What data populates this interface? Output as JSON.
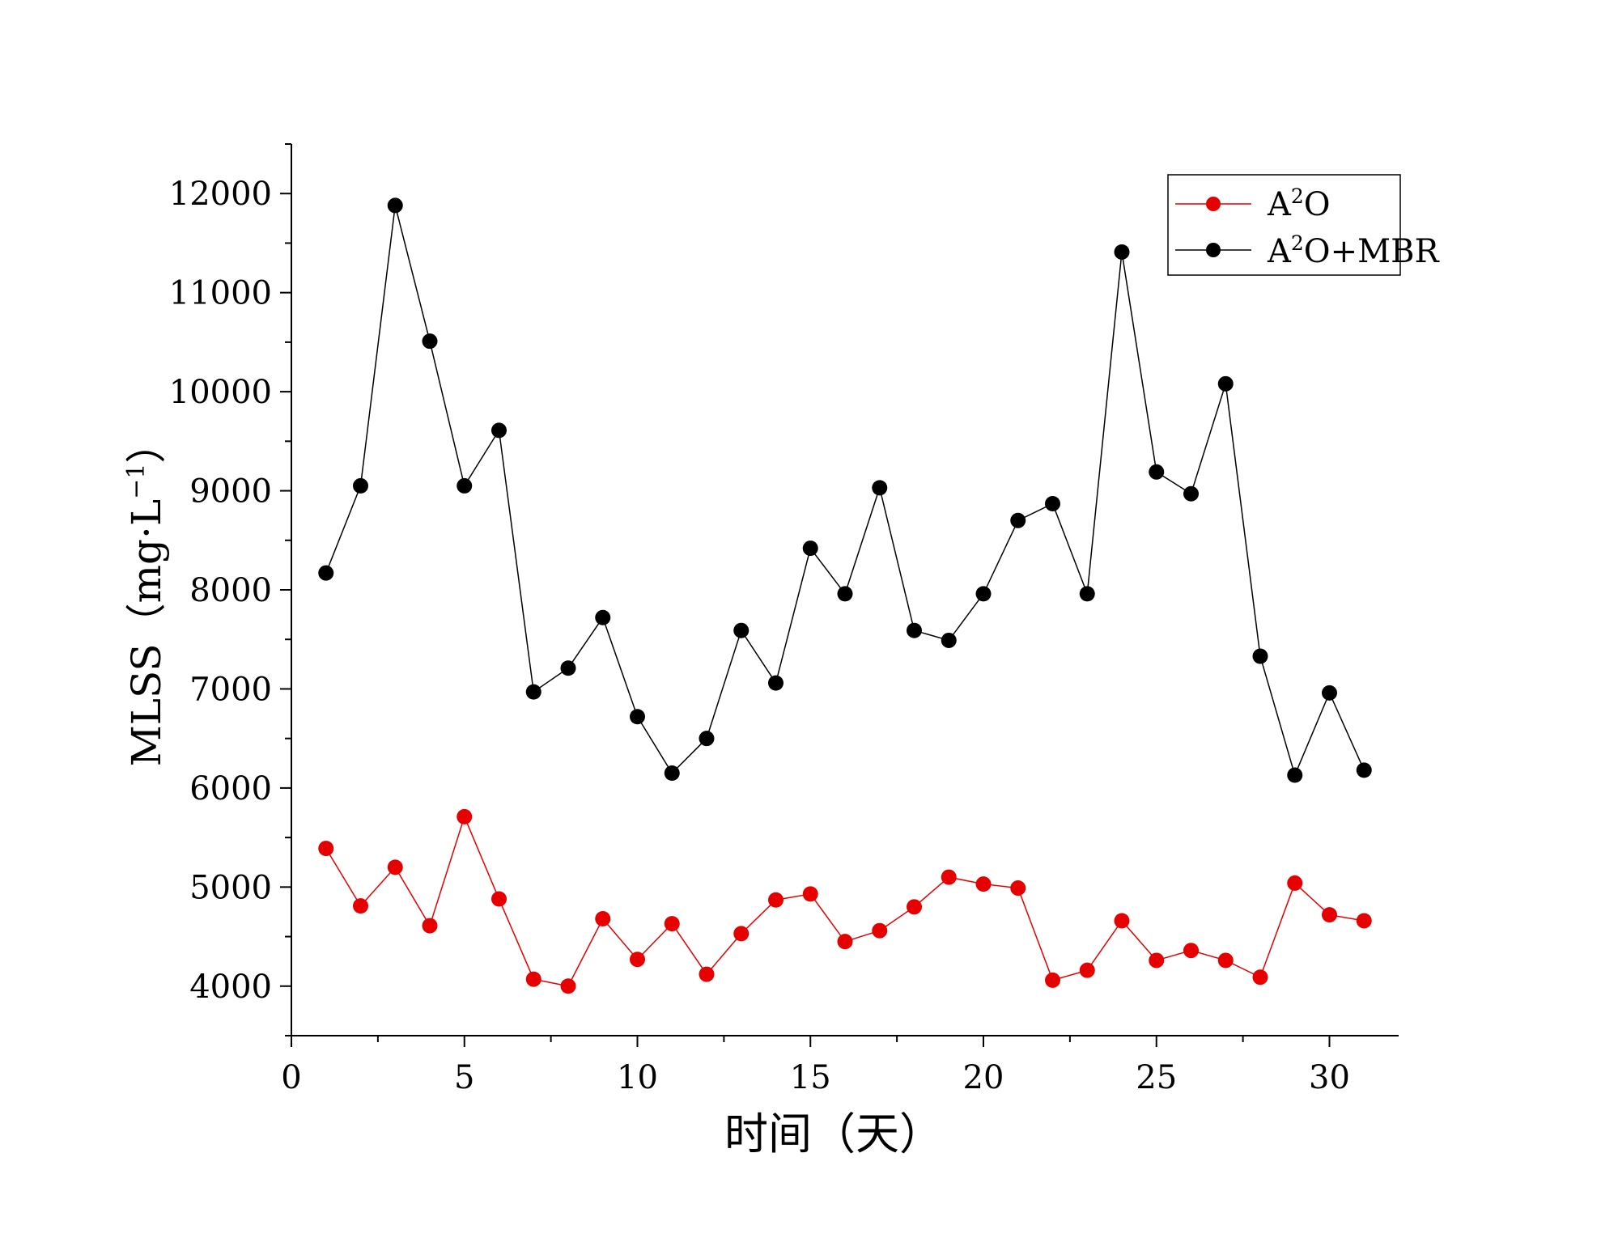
{
  "chart_data": {
    "type": "line",
    "xlabel": "时间（天）",
    "ylabel_main": "MLSS（mg·L",
    "ylabel_sup": "−1",
    "ylabel_tail": "）",
    "xlim": [
      0,
      32
    ],
    "ylim": [
      3500,
      12500
    ],
    "x_ticks": [
      0,
      5,
      10,
      15,
      20,
      25,
      30
    ],
    "y_ticks": [
      4000,
      5000,
      6000,
      7000,
      8000,
      9000,
      10000,
      11000,
      12000
    ],
    "x": [
      1,
      2,
      3,
      4,
      5,
      6,
      7,
      8,
      9,
      10,
      11,
      12,
      13,
      14,
      15,
      16,
      17,
      18,
      19,
      20,
      21,
      22,
      23,
      24,
      25,
      26,
      27,
      28,
      29,
      30,
      31
    ],
    "series": [
      {
        "name_base": "A",
        "name_sup": "2",
        "name_tail": "O",
        "color": "#e60000",
        "values": [
          5390,
          4810,
          5200,
          4610,
          5710,
          4880,
          4070,
          4000,
          4680,
          4270,
          4630,
          4120,
          4530,
          4870,
          4930,
          4450,
          4560,
          4800,
          5100,
          5030,
          4990,
          4060,
          4160,
          4660,
          4260,
          4360,
          4260,
          4090,
          5040,
          4720,
          4660
        ]
      },
      {
        "name_base": "A",
        "name_sup": "2",
        "name_tail": "O+MBR",
        "color": "#000000",
        "values": [
          8170,
          9050,
          11880,
          10510,
          9050,
          9610,
          6970,
          7210,
          7720,
          6720,
          6150,
          6500,
          7590,
          7060,
          8420,
          7960,
          9030,
          7590,
          7490,
          7960,
          8700,
          8870,
          7960,
          11410,
          9190,
          8970,
          10080,
          7330,
          6130,
          6960,
          6180
        ]
      }
    ],
    "legend_position": "top-right",
    "grid": false
  }
}
